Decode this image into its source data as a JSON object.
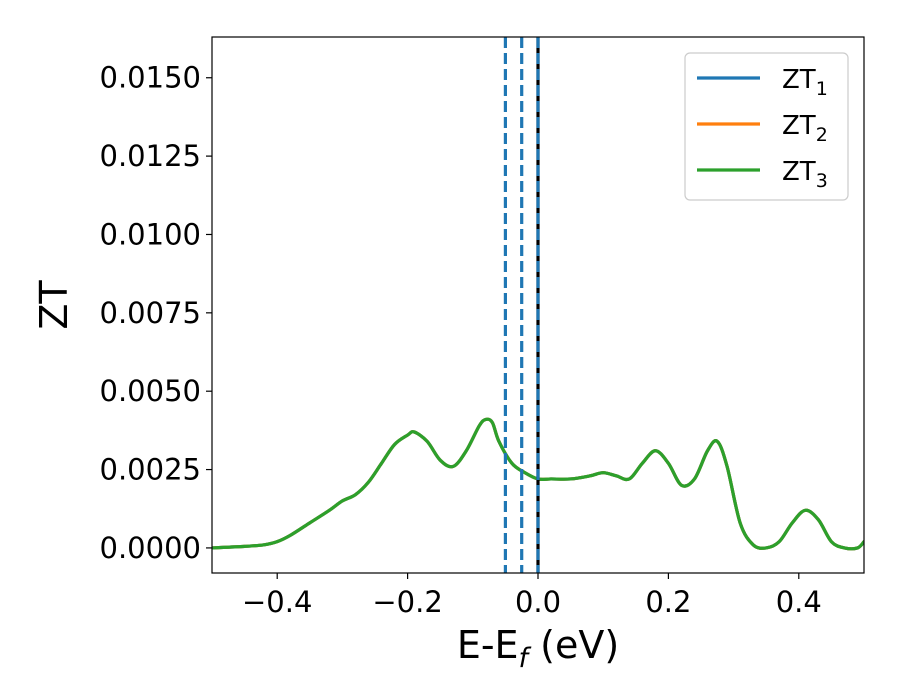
{
  "chart_data": {
    "type": "line",
    "xlabel": {
      "base": "E-E",
      "sub": "f",
      "rest": " (eV)"
    },
    "ylabel": "ZT",
    "xlim": [
      -0.5,
      0.5
    ],
    "ylim": [
      -0.0008,
      0.0163
    ],
    "xticks": [
      -0.4,
      -0.2,
      0.0,
      0.2,
      0.4
    ],
    "xtick_labels": [
      "−0.4",
      "−0.2",
      "0.0",
      "0.2",
      "0.4"
    ],
    "yticks": [
      0.0,
      0.0025,
      0.005,
      0.0075,
      0.01,
      0.0125,
      0.015
    ],
    "ytick_labels": [
      "0.0000",
      "0.0025",
      "0.0050",
      "0.0075",
      "0.0100",
      "0.0125",
      "0.0150"
    ],
    "grid": false,
    "legend_position": "top-right",
    "series": [
      {
        "name": "ZT1",
        "name_base": "ZT",
        "name_sub": "1",
        "color": "#1f77b4",
        "x": [
          -0.5,
          -0.45,
          -0.42,
          -0.4,
          -0.38,
          -0.35,
          -0.32,
          -0.3,
          -0.28,
          -0.26,
          -0.24,
          -0.22,
          -0.2,
          -0.19,
          -0.17,
          -0.15,
          -0.13,
          -0.11,
          -0.09,
          -0.08,
          -0.07,
          -0.06,
          -0.04,
          -0.02,
          0.0,
          0.02,
          0.05,
          0.08,
          0.1,
          0.12,
          0.14,
          0.16,
          0.18,
          0.2,
          0.22,
          0.24,
          0.26,
          0.275,
          0.29,
          0.31,
          0.33,
          0.35,
          0.37,
          0.39,
          0.41,
          0.43,
          0.45,
          0.47,
          0.49,
          0.5
        ],
        "y": [
          0.0,
          5e-05,
          0.0001,
          0.0002,
          0.0004,
          0.0008,
          0.0012,
          0.0015,
          0.0017,
          0.0021,
          0.0027,
          0.0033,
          0.0036,
          0.0037,
          0.0034,
          0.0028,
          0.0026,
          0.0031,
          0.0039,
          0.0041,
          0.004,
          0.0034,
          0.0027,
          0.0024,
          0.0022,
          0.0022,
          0.0022,
          0.0023,
          0.0024,
          0.0023,
          0.0022,
          0.0027,
          0.0031,
          0.0027,
          0.002,
          0.0022,
          0.0031,
          0.0034,
          0.0026,
          0.0008,
          0.0001,
          0.0,
          0.0002,
          0.0008,
          0.0012,
          0.0009,
          0.0002,
          0.0,
          0.0,
          0.0002
        ]
      },
      {
        "name": "ZT2",
        "name_base": "ZT",
        "name_sub": "2",
        "color": "#ff7f0e",
        "x": [
          -0.5,
          -0.45,
          -0.42,
          -0.4,
          -0.38,
          -0.35,
          -0.32,
          -0.3,
          -0.28,
          -0.26,
          -0.24,
          -0.22,
          -0.2,
          -0.19,
          -0.17,
          -0.15,
          -0.13,
          -0.11,
          -0.09,
          -0.08,
          -0.07,
          -0.06,
          -0.04,
          -0.02,
          0.0,
          0.02,
          0.05,
          0.08,
          0.1,
          0.12,
          0.14,
          0.16,
          0.18,
          0.2,
          0.22,
          0.24,
          0.26,
          0.275,
          0.29,
          0.31,
          0.33,
          0.35,
          0.37,
          0.39,
          0.41,
          0.43,
          0.45,
          0.47,
          0.49,
          0.5
        ],
        "y": [
          0.0,
          5e-05,
          0.0001,
          0.0002,
          0.0004,
          0.0008,
          0.0012,
          0.0015,
          0.0017,
          0.0021,
          0.0027,
          0.0033,
          0.0036,
          0.0037,
          0.0034,
          0.0028,
          0.0026,
          0.0031,
          0.0039,
          0.0041,
          0.004,
          0.0034,
          0.0027,
          0.0024,
          0.0022,
          0.0022,
          0.0022,
          0.0023,
          0.0024,
          0.0023,
          0.0022,
          0.0027,
          0.0031,
          0.0027,
          0.002,
          0.0022,
          0.0031,
          0.0034,
          0.0026,
          0.0008,
          0.0001,
          0.0,
          0.0002,
          0.0008,
          0.0012,
          0.0009,
          0.0002,
          0.0,
          0.0,
          0.0002
        ]
      },
      {
        "name": "ZT3",
        "name_base": "ZT",
        "name_sub": "3",
        "color": "#2ca02c",
        "x": [
          -0.5,
          -0.45,
          -0.42,
          -0.4,
          -0.38,
          -0.35,
          -0.32,
          -0.3,
          -0.28,
          -0.26,
          -0.24,
          -0.22,
          -0.2,
          -0.19,
          -0.17,
          -0.15,
          -0.13,
          -0.11,
          -0.09,
          -0.08,
          -0.07,
          -0.06,
          -0.04,
          -0.02,
          0.0,
          0.02,
          0.05,
          0.08,
          0.1,
          0.12,
          0.14,
          0.16,
          0.18,
          0.2,
          0.22,
          0.24,
          0.26,
          0.275,
          0.29,
          0.31,
          0.33,
          0.35,
          0.37,
          0.39,
          0.41,
          0.43,
          0.45,
          0.47,
          0.49,
          0.5
        ],
        "y": [
          0.0,
          5e-05,
          0.0001,
          0.0002,
          0.0004,
          0.0008,
          0.0012,
          0.0015,
          0.0017,
          0.0021,
          0.0027,
          0.0033,
          0.0036,
          0.0037,
          0.0034,
          0.0028,
          0.0026,
          0.0031,
          0.0039,
          0.0041,
          0.004,
          0.0034,
          0.0027,
          0.0024,
          0.0022,
          0.0022,
          0.0022,
          0.0023,
          0.0024,
          0.0023,
          0.0022,
          0.0027,
          0.0031,
          0.0027,
          0.002,
          0.0022,
          0.0031,
          0.0034,
          0.0026,
          0.0008,
          0.0001,
          0.0,
          0.0002,
          0.0008,
          0.0012,
          0.0009,
          0.0002,
          0.0,
          0.0,
          0.0002
        ]
      }
    ],
    "vlines": [
      {
        "x": -0.05,
        "color": "#1f77b4",
        "style": "dashed"
      },
      {
        "x": -0.025,
        "color": "#1f77b4",
        "style": "dashed"
      },
      {
        "x": 0.0,
        "color": "#000000",
        "style": "solid"
      },
      {
        "x": 0.0,
        "color": "#1f77b4",
        "style": "dashed"
      }
    ]
  }
}
